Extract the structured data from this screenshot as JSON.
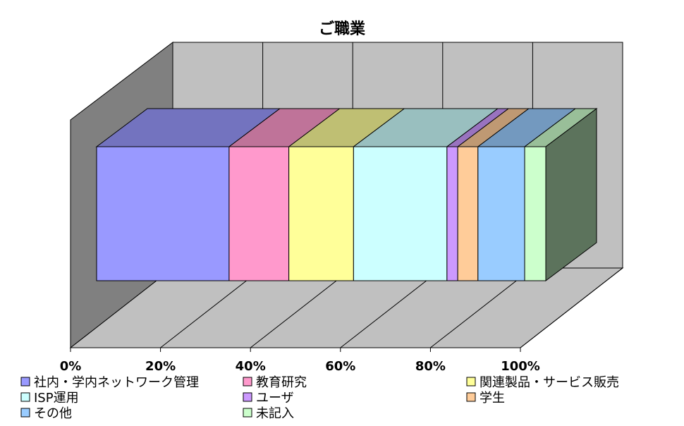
{
  "chart_data": {
    "type": "bar",
    "orientation": "horizontal",
    "stacked": "percent",
    "title": "ご職業",
    "xlim": [
      0,
      100
    ],
    "x_ticks": [
      "0%",
      "20%",
      "40%",
      "60%",
      "80%",
      "100%"
    ],
    "grid": true,
    "legend_position": "bottom",
    "series": [
      {
        "name": "社内・学内ネットワーク管理",
        "value": 29.5,
        "color": "#9999ff"
      },
      {
        "name": "教育研究",
        "value": 13.3,
        "color": "#ff99cc"
      },
      {
        "name": "関連製品・サービス販売",
        "value": 14.4,
        "color": "#ffff99"
      },
      {
        "name": "ISP運用",
        "value": 20.8,
        "color": "#ccffff"
      },
      {
        "name": "ユーザ",
        "value": 2.4,
        "color": "#cc99ff"
      },
      {
        "name": "学生",
        "value": 4.5,
        "color": "#ffcc99"
      },
      {
        "name": "その他",
        "value": 10.4,
        "color": "#99ccff"
      },
      {
        "name": "未記入",
        "value": 4.7,
        "color": "#ccffcc"
      }
    ]
  }
}
